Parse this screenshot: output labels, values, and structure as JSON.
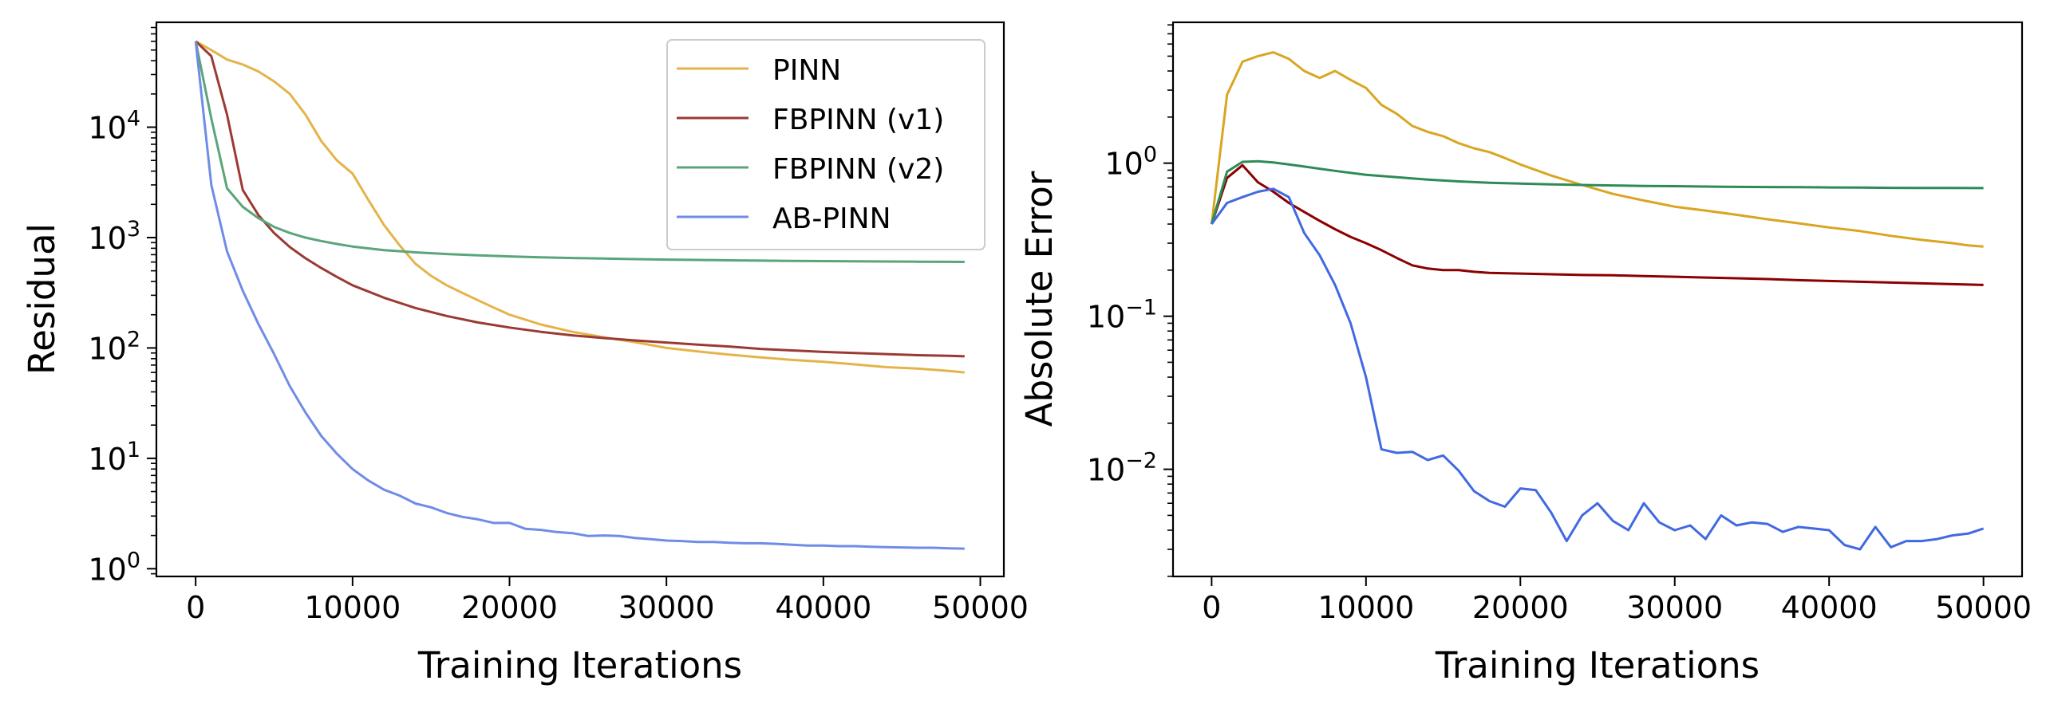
{
  "chart_data": [
    {
      "type": "line",
      "panel": "left",
      "title": "",
      "xlabel": "Training Iterations",
      "ylabel": "Residual",
      "yscale": "log",
      "xlim": [
        -2500,
        51500
      ],
      "ylim_log10": [
        -0.07,
        4.95
      ],
      "xticks": [
        0,
        10000,
        20000,
        30000,
        40000,
        50000
      ],
      "xtick_labels": [
        "0",
        "10000",
        "20000",
        "30000",
        "40000",
        "50000"
      ],
      "ytick_labels": [
        {
          "base": "10",
          "exp": "0",
          "value": 1
        },
        {
          "base": "10",
          "exp": "1",
          "value": 10
        },
        {
          "base": "10",
          "exp": "2",
          "value": 100
        },
        {
          "base": "10",
          "exp": "3",
          "value": 1000
        },
        {
          "base": "10",
          "exp": "4",
          "value": 10000
        }
      ],
      "legend": {
        "position": "top-right",
        "entries": [
          "PINN",
          "FBPINN (v1)",
          "FBPINN (v2)",
          "AB-PINN"
        ]
      },
      "series": [
        {
          "name": "PINN",
          "color": "#E4B44A",
          "x": [
            0,
            1000,
            2000,
            3000,
            4000,
            5000,
            6000,
            7000,
            8000,
            9000,
            10000,
            11000,
            12000,
            13000,
            14000,
            15000,
            16000,
            17000,
            18000,
            19000,
            20000,
            22000,
            24000,
            26000,
            28000,
            30000,
            32000,
            34000,
            36000,
            38000,
            40000,
            42000,
            44000,
            46000,
            48000,
            49000
          ],
          "values": [
            60000,
            50000,
            41000,
            37000,
            32000,
            26000,
            20000,
            13000,
            7500,
            5000,
            3800,
            2200,
            1300,
            850,
            580,
            450,
            370,
            315,
            270,
            232,
            200,
            163,
            140,
            125,
            113,
            100,
            93,
            87,
            82,
            78,
            75,
            71,
            67,
            65,
            62,
            60
          ]
        },
        {
          "name": "FBPINN (v1)",
          "color": "#9B3A34",
          "x": [
            0,
            1000,
            2000,
            3000,
            4000,
            5000,
            6000,
            7000,
            8000,
            9000,
            10000,
            12000,
            14000,
            16000,
            18000,
            20000,
            22000,
            24000,
            26000,
            28000,
            30000,
            32000,
            34000,
            36000,
            38000,
            40000,
            42000,
            44000,
            46000,
            48000,
            49000
          ],
          "values": [
            60000,
            44000,
            13000,
            2700,
            1600,
            1100,
            820,
            650,
            530,
            440,
            370,
            285,
            230,
            195,
            170,
            153,
            140,
            130,
            123,
            117,
            112,
            107,
            103,
            98,
            95,
            92,
            90,
            88,
            86,
            85,
            84
          ]
        },
        {
          "name": "FBPINN (v2)",
          "color": "#5AA57A",
          "x": [
            0,
            1000,
            2000,
            3000,
            4000,
            5000,
            6000,
            7000,
            8000,
            9000,
            10000,
            12000,
            14000,
            16000,
            18000,
            20000,
            22000,
            24000,
            26000,
            28000,
            30000,
            32000,
            34000,
            36000,
            38000,
            40000,
            42000,
            44000,
            46000,
            48000,
            49000
          ],
          "values": [
            60000,
            12000,
            2800,
            1900,
            1500,
            1250,
            1100,
            1000,
            930,
            875,
            830,
            770,
            735,
            710,
            690,
            675,
            663,
            653,
            645,
            638,
            632,
            627,
            622,
            618,
            615,
            612,
            609,
            607,
            605,
            603,
            602
          ]
        },
        {
          "name": "AB-PINN",
          "color": "#6F8CE6",
          "x": [
            0,
            1000,
            2000,
            3000,
            4000,
            5000,
            6000,
            7000,
            8000,
            9000,
            10000,
            11000,
            12000,
            13000,
            14000,
            15000,
            16000,
            17000,
            18000,
            19000,
            20000,
            21000,
            22000,
            23000,
            24000,
            25000,
            26000,
            27000,
            28000,
            29000,
            30000,
            31000,
            32000,
            33000,
            34000,
            35000,
            36000,
            37000,
            38000,
            39000,
            40000,
            41000,
            42000,
            43000,
            44000,
            45000,
            46000,
            47000,
            48000,
            49000
          ],
          "values": [
            60000,
            3000,
            750,
            330,
            165,
            88,
            45,
            26,
            16,
            11,
            8,
            6.3,
            5.2,
            4.6,
            3.9,
            3.6,
            3.2,
            2.95,
            2.8,
            2.6,
            2.6,
            2.3,
            2.25,
            2.15,
            2.1,
            1.98,
            2.0,
            1.98,
            1.9,
            1.85,
            1.8,
            1.78,
            1.75,
            1.75,
            1.72,
            1.7,
            1.7,
            1.68,
            1.65,
            1.62,
            1.62,
            1.6,
            1.6,
            1.58,
            1.57,
            1.56,
            1.55,
            1.55,
            1.53,
            1.52
          ]
        }
      ]
    },
    {
      "type": "line",
      "panel": "right",
      "title": "",
      "xlabel": "Training Iterations",
      "ylabel": "Absolute Error",
      "yscale": "log",
      "xlim": [
        -2500,
        52500
      ],
      "ylim_log10": [
        -2.7,
        0.92
      ],
      "xticks": [
        0,
        10000,
        20000,
        30000,
        40000,
        50000
      ],
      "xtick_labels": [
        "0",
        "10000",
        "20000",
        "30000",
        "40000",
        "50000"
      ],
      "ytick_labels": [
        {
          "base": "10",
          "exp": "−2",
          "value": 0.01
        },
        {
          "base": "10",
          "exp": "−1",
          "value": 0.1
        },
        {
          "base": "10",
          "exp": "0",
          "value": 1
        }
      ],
      "series": [
        {
          "name": "PINN",
          "color": "#DAA520",
          "x": [
            0,
            1000,
            2000,
            3000,
            4000,
            5000,
            6000,
            7000,
            8000,
            9000,
            10000,
            11000,
            12000,
            13000,
            14000,
            15000,
            16000,
            17000,
            18000,
            19000,
            20000,
            22000,
            24000,
            26000,
            28000,
            30000,
            32000,
            34000,
            36000,
            38000,
            40000,
            42000,
            44000,
            46000,
            48000,
            49000,
            50000
          ],
          "values": [
            0.4,
            2.8,
            4.6,
            5.0,
            5.3,
            4.8,
            4.0,
            3.6,
            4.0,
            3.5,
            3.1,
            2.4,
            2.1,
            1.75,
            1.6,
            1.5,
            1.35,
            1.25,
            1.18,
            1.08,
            0.98,
            0.83,
            0.72,
            0.63,
            0.57,
            0.52,
            0.49,
            0.46,
            0.43,
            0.405,
            0.38,
            0.36,
            0.335,
            0.315,
            0.3,
            0.29,
            0.285
          ]
        },
        {
          "name": "FBPINN (v1)",
          "color": "#8B0000",
          "x": [
            0,
            1000,
            2000,
            3000,
            4000,
            5000,
            6000,
            7000,
            8000,
            9000,
            10000,
            11000,
            12000,
            13000,
            14000,
            15000,
            16000,
            17000,
            18000,
            20000,
            22000,
            24000,
            26000,
            28000,
            30000,
            32000,
            34000,
            36000,
            38000,
            40000,
            42000,
            44000,
            46000,
            48000,
            50000
          ],
          "values": [
            0.4,
            0.8,
            0.97,
            0.75,
            0.65,
            0.55,
            0.48,
            0.42,
            0.37,
            0.33,
            0.3,
            0.27,
            0.24,
            0.215,
            0.205,
            0.2,
            0.2,
            0.195,
            0.192,
            0.19,
            0.188,
            0.186,
            0.185,
            0.183,
            0.181,
            0.179,
            0.177,
            0.175,
            0.172,
            0.17,
            0.168,
            0.166,
            0.164,
            0.162,
            0.16
          ]
        },
        {
          "name": "FBPINN (v2)",
          "color": "#2E8B57",
          "x": [
            0,
            1000,
            2000,
            3000,
            4000,
            5000,
            6000,
            8000,
            10000,
            12000,
            14000,
            16000,
            18000,
            20000,
            22000,
            24000,
            26000,
            28000,
            30000,
            32000,
            34000,
            36000,
            38000,
            40000,
            42000,
            44000,
            46000,
            48000,
            50000
          ],
          "values": [
            0.4,
            0.88,
            1.02,
            1.03,
            1.01,
            0.98,
            0.95,
            0.89,
            0.84,
            0.81,
            0.78,
            0.76,
            0.745,
            0.735,
            0.727,
            0.72,
            0.715,
            0.71,
            0.707,
            0.703,
            0.7,
            0.698,
            0.696,
            0.694,
            0.692,
            0.69,
            0.689,
            0.688,
            0.687
          ]
        },
        {
          "name": "AB-PINN",
          "color": "#4169E1",
          "x": [
            0,
            1000,
            2000,
            3000,
            4000,
            5000,
            6000,
            7000,
            8000,
            9000,
            10000,
            11000,
            12000,
            13000,
            14000,
            15000,
            16000,
            17000,
            18000,
            19000,
            20000,
            21000,
            22000,
            23000,
            24000,
            25000,
            26000,
            27000,
            28000,
            29000,
            30000,
            31000,
            32000,
            33000,
            34000,
            35000,
            36000,
            37000,
            38000,
            39000,
            40000,
            41000,
            42000,
            43000,
            44000,
            45000,
            46000,
            47000,
            48000,
            49000,
            50000
          ],
          "values": [
            0.4,
            0.55,
            0.6,
            0.65,
            0.68,
            0.6,
            0.35,
            0.25,
            0.16,
            0.09,
            0.04,
            0.0135,
            0.0128,
            0.013,
            0.0115,
            0.0123,
            0.0098,
            0.0072,
            0.0062,
            0.0057,
            0.0075,
            0.0073,
            0.0052,
            0.0034,
            0.005,
            0.006,
            0.0046,
            0.004,
            0.006,
            0.0045,
            0.004,
            0.0043,
            0.0035,
            0.005,
            0.0043,
            0.0045,
            0.0044,
            0.0039,
            0.0042,
            0.0041,
            0.004,
            0.0032,
            0.003,
            0.0042,
            0.0031,
            0.0034,
            0.0034,
            0.0035,
            0.0037,
            0.0038,
            0.0041
          ]
        }
      ]
    }
  ]
}
